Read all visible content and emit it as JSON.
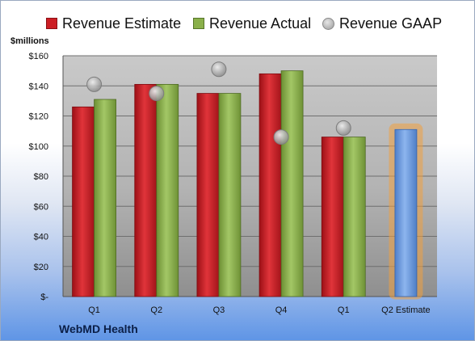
{
  "chart_data": {
    "type": "bar",
    "ylabel": "$millions",
    "categories": [
      "Q1",
      "Q2",
      "Q3",
      "Q4",
      "Q1",
      "Q2 Estimate"
    ],
    "ylim": [
      0,
      160
    ],
    "y_ticks": [
      "$-",
      "$20",
      "$40",
      "$60",
      "$80",
      "$100",
      "$120",
      "$140",
      "$160"
    ],
    "series": [
      {
        "name": "Revenue Estimate",
        "type": "bar",
        "color": "#cc1e24",
        "values": [
          126,
          141,
          135,
          148,
          106,
          null
        ]
      },
      {
        "name": "Revenue Actual",
        "type": "bar",
        "color": "#8ab04a",
        "values": [
          131,
          141,
          135,
          150,
          106,
          null
        ]
      },
      {
        "name": "Revenue GAAP",
        "type": "scatter",
        "color": "#a8a8a8",
        "values": [
          141,
          135,
          151,
          106,
          112,
          null
        ]
      },
      {
        "name": "",
        "type": "bar",
        "color": "#6f9de0",
        "highlight": "#f0a040",
        "values": [
          null,
          null,
          null,
          null,
          null,
          111
        ]
      }
    ],
    "grid": true,
    "legend": "top",
    "footer": "WebMD Health"
  }
}
